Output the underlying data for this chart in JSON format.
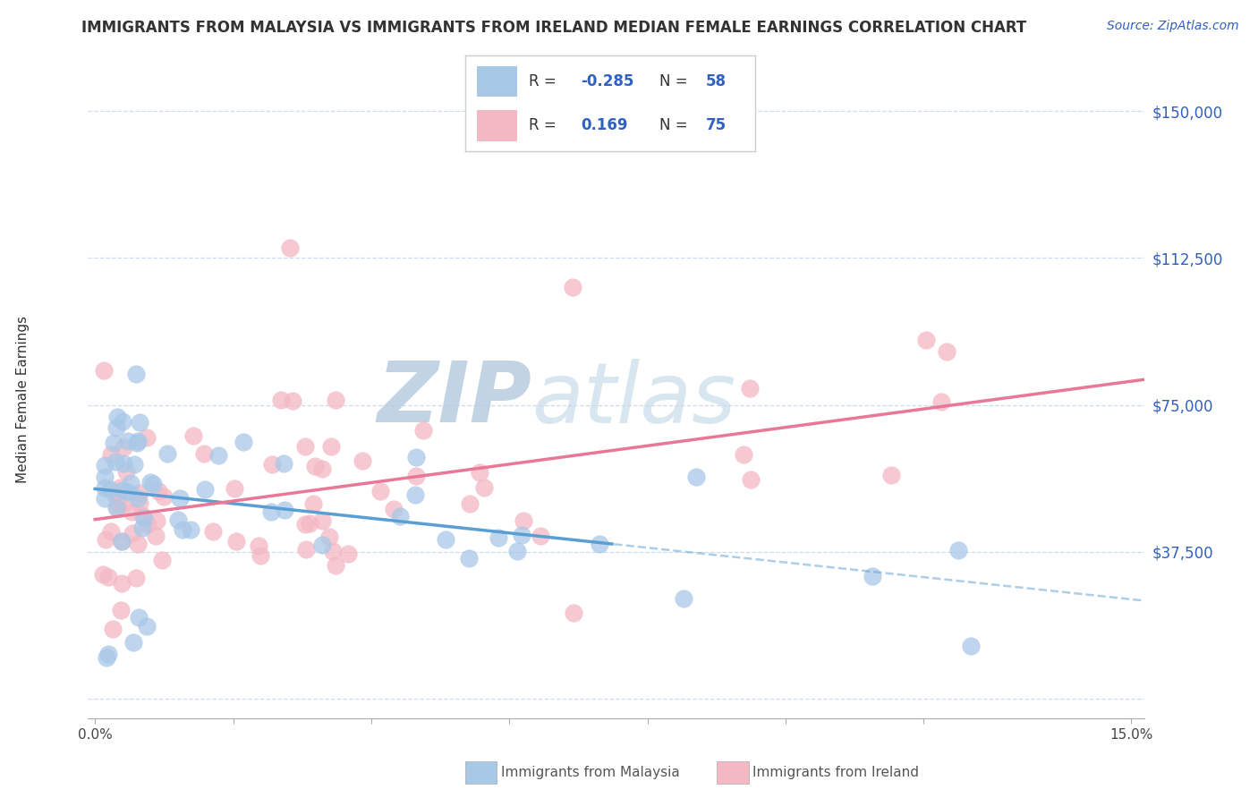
{
  "title": "IMMIGRANTS FROM MALAYSIA VS IMMIGRANTS FROM IRELAND MEDIAN FEMALE EARNINGS CORRELATION CHART",
  "source": "Source: ZipAtlas.com",
  "ylabel": "Median Female Earnings",
  "xlim": [
    -0.001,
    0.152
  ],
  "ylim": [
    -5000,
    158000
  ],
  "yticks": [
    0,
    37500,
    75000,
    112500,
    150000
  ],
  "ytick_labels": [
    "",
    "$37,500",
    "$75,000",
    "$112,500",
    "$150,000"
  ],
  "xtick_positions": [
    0.0,
    0.02,
    0.04,
    0.06,
    0.08,
    0.1,
    0.12,
    0.15
  ],
  "xlim_actual": [
    0.0,
    0.15
  ],
  "malaysia_R": -0.285,
  "malaysia_N": 58,
  "ireland_R": 0.169,
  "ireland_N": 75,
  "malaysia_scatter_color": "#a8c8e8",
  "ireland_scatter_color": "#f4b8c4",
  "malaysia_line_color": "#5a9fd4",
  "ireland_line_color": "#e87898",
  "grid_color": "#c8d8e8",
  "watermark_color": "#c8d8ec",
  "title_fontsize": 12,
  "source_fontsize": 10,
  "legend_text_color": "#3060c0",
  "ytick_color": "#3060c0",
  "legend_R_black": "#444444",
  "bottom_legend_malaysia_color": "#a8c8e8",
  "bottom_legend_ireland_color": "#f4b8c4"
}
